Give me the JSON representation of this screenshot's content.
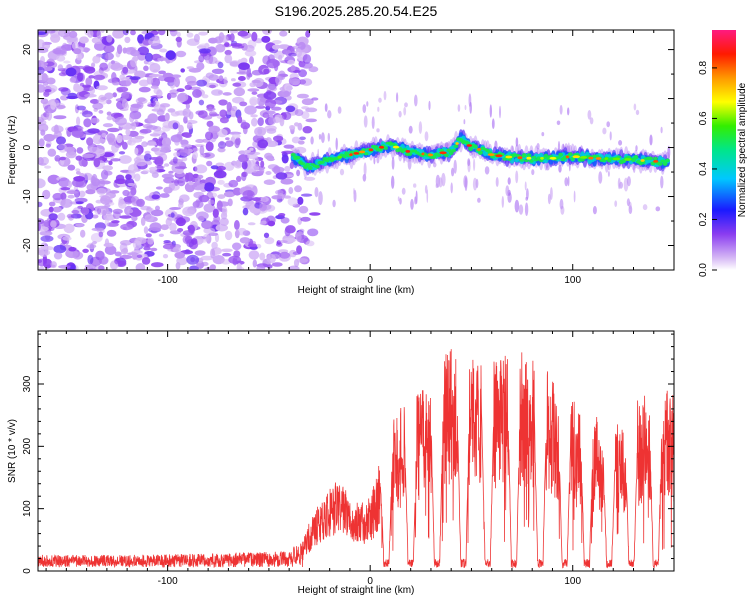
{
  "title": "S196.2025.285.20.54.E25",
  "chart_data": [
    {
      "type": "heatmap",
      "xlabel": "Height of straight line (km)",
      "ylabel": "Frequency (Hz)",
      "xlim": [
        -164,
        150
      ],
      "ylim": [
        -25,
        24
      ],
      "xticks": [
        -100,
        0,
        100
      ],
      "yticks": [
        -20,
        -10,
        0,
        10,
        20
      ],
      "colorbar": {
        "label": "Normalized spectral amplitude",
        "range": [
          0,
          0.95
        ],
        "ticks": [
          0,
          0.2,
          0.4,
          0.6,
          0.8
        ],
        "tick_labels": [
          "0.0",
          "0.2",
          "0.4",
          "0.6",
          "0.8"
        ]
      },
      "noise_region_x": [
        -164,
        -33
      ],
      "signal_ridge": {
        "x": [
          -40,
          -30,
          -20,
          -10,
          0,
          10,
          20,
          30,
          40,
          45,
          50,
          55,
          60,
          70,
          80,
          90,
          100,
          110,
          120,
          130,
          140,
          148
        ],
        "freq": [
          -1.5,
          -4,
          -2.5,
          -1.5,
          -0.5,
          0.5,
          -1,
          -1.5,
          -0.8,
          2,
          0,
          -0.5,
          -1.5,
          -2,
          -2.2,
          -2.2,
          -1.8,
          -2.2,
          -2.3,
          -2.5,
          -2.8,
          -3
        ]
      }
    },
    {
      "type": "line",
      "xlabel": "Height of straight line (km)",
      "ylabel": "SNR (10 * v/v)",
      "xlim": [
        -164,
        150
      ],
      "ylim": [
        0,
        385
      ],
      "xticks": [
        -100,
        0,
        100
      ],
      "yticks": [
        0,
        100,
        200,
        300
      ],
      "color": "#ee3333",
      "envelope": {
        "x": [
          -164,
          -120,
          -80,
          -40,
          -33,
          -28,
          -20,
          -15,
          -10,
          -5,
          0,
          5,
          10,
          20,
          30,
          40,
          50,
          60,
          70,
          80,
          90,
          100,
          110,
          120,
          130,
          140,
          150
        ],
        "y": [
          18,
          18,
          20,
          24,
          45,
          80,
          110,
          130,
          95,
          90,
          100,
          150,
          200,
          240,
          270,
          300,
          290,
          280,
          300,
          290,
          260,
          230,
          210,
          190,
          220,
          260,
          240
        ]
      },
      "dips_x": [
        8,
        20,
        33,
        46,
        58,
        71,
        84,
        96,
        107,
        118,
        129,
        141
      ]
    }
  ]
}
